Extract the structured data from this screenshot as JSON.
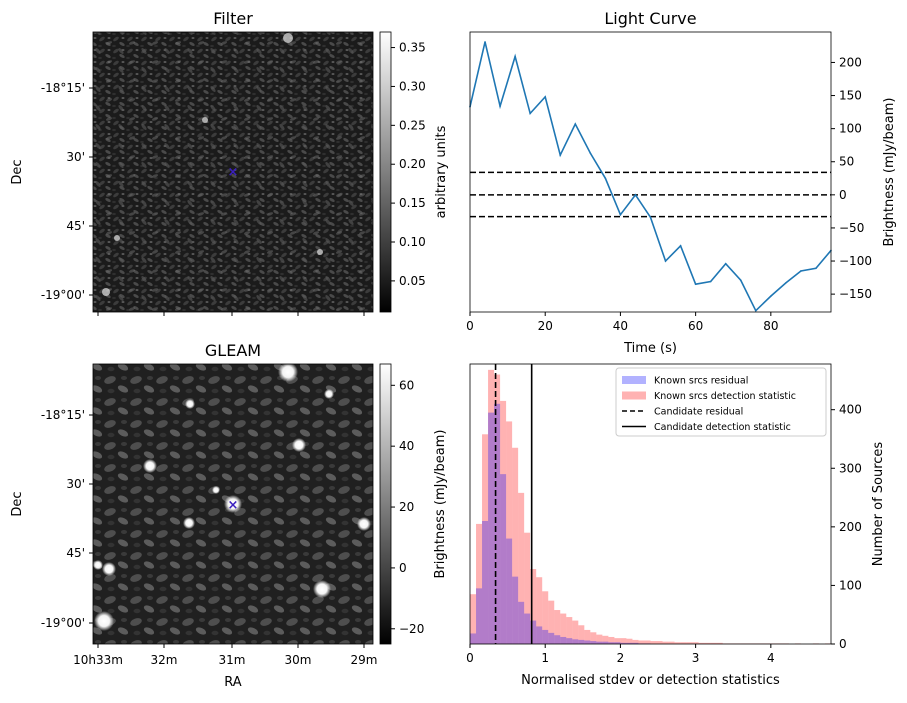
{
  "chart_data": [
    {
      "type": "heatmap",
      "title": "Filter",
      "ylabel": "Dec",
      "y_ticks": [
        "-18°15'",
        "30'",
        "45'",
        "-19°00'"
      ],
      "colorbar": {
        "label": "arbitrary units",
        "range": [
          0.01,
          0.37
        ],
        "ticks": [
          {
            "value": 0.35,
            "label": "0.35"
          },
          {
            "value": 0.3,
            "label": "0.30"
          },
          {
            "value": 0.25,
            "label": "0.25"
          },
          {
            "value": 0.2,
            "label": "0.20"
          },
          {
            "value": 0.15,
            "label": "0.15"
          },
          {
            "value": 0.1,
            "label": "0.10"
          },
          {
            "value": 0.05,
            "label": "0.05"
          }
        ]
      },
      "marker": "×"
    },
    {
      "type": "line",
      "title": "Light Curve",
      "xlabel": "Time (s)",
      "ylabel": "Brightness (mJy/beam)",
      "xlim": [
        0,
        96
      ],
      "ylim": [
        -177,
        246
      ],
      "x_ticks": [
        0,
        20,
        40,
        60,
        80
      ],
      "y_ticks": [
        200,
        150,
        100,
        50,
        0,
        -50,
        -100,
        -150
      ],
      "series": [
        {
          "color": "#1f77b4",
          "x": [
            0,
            4,
            8,
            12,
            16,
            20,
            24,
            28,
            32,
            36,
            40,
            44,
            48,
            52,
            56,
            60,
            64,
            68,
            72,
            76,
            80,
            84,
            88,
            92,
            96
          ],
          "values": [
            133,
            231,
            134,
            209,
            123,
            148,
            60,
            107,
            63,
            25,
            -30,
            0,
            -34,
            -100,
            -77,
            -135,
            -131,
            -104,
            -129,
            -175,
            -153,
            -133,
            -115,
            -111,
            -84
          ]
        }
      ],
      "hlines": [
        {
          "y": 34,
          "style": "dashed",
          "color": "#000000"
        },
        {
          "y": 0,
          "style": "dashed",
          "color": "#000000"
        },
        {
          "y": -33,
          "style": "dashed",
          "color": "#000000"
        }
      ]
    },
    {
      "type": "heatmap",
      "title": "GLEAM",
      "xlabel": "RA",
      "ylabel": "Dec",
      "x_ticks": [
        "10h33m",
        "32m",
        "31m",
        "30m",
        "29m"
      ],
      "y_ticks": [
        "-18°15'",
        "30'",
        "45'",
        "-19°00'"
      ],
      "colorbar": {
        "label": "Brightness (mJy/beam)",
        "range": [
          -25,
          67
        ],
        "ticks": [
          {
            "value": 60,
            "label": "60"
          },
          {
            "value": 40,
            "label": "40"
          },
          {
            "value": 20,
            "label": "20"
          },
          {
            "value": 0,
            "label": "0"
          },
          {
            "value": -20,
            "label": "−20"
          }
        ]
      },
      "marker": "×"
    },
    {
      "type": "bar",
      "xlabel": "Normalised stdev or detection statistics",
      "ylabel": "Number of Sources",
      "xlim": [
        0,
        4.8
      ],
      "ylim": [
        0,
        478
      ],
      "x_ticks": [
        0,
        1,
        2,
        3,
        4
      ],
      "y_ticks": [
        0,
        100,
        200,
        300,
        400
      ],
      "bin_width": 0.08,
      "series": [
        {
          "name": "Known srcs residual",
          "color": "#0000ff",
          "opacity": 0.3,
          "bin_start": 0.0,
          "values": [
            18,
            95,
            210,
            395,
            410,
            290,
            180,
            115,
            72,
            52,
            40,
            30,
            24,
            19,
            15,
            12,
            10,
            8,
            7,
            6,
            5,
            4,
            4,
            3,
            3,
            2,
            2,
            2,
            1,
            1
          ]
        },
        {
          "name": "Known srcs detection statistic",
          "color": "#ff0000",
          "opacity": 0.3,
          "bin_start": 0.0,
          "values": [
            85,
            205,
            358,
            468,
            460,
            415,
            380,
            335,
            258,
            190,
            128,
            114,
            90,
            74,
            58,
            52,
            46,
            40,
            32,
            24,
            20,
            16,
            14,
            12,
            10,
            10,
            9,
            7,
            6,
            6,
            5,
            5,
            4,
            4,
            3,
            3,
            3,
            3,
            2,
            2,
            2,
            2,
            1,
            1,
            1,
            1,
            1,
            1,
            1,
            1,
            1,
            1,
            1,
            0,
            1,
            0,
            0,
            1,
            0,
            1
          ]
        }
      ],
      "vlines": [
        {
          "name": "Candidate residual",
          "x": 0.34,
          "style": "dashed",
          "color": "#000000"
        },
        {
          "name": "Candidate detection statistic",
          "x": 0.82,
          "style": "solid",
          "color": "#000000"
        }
      ],
      "legend_position": "top-right"
    }
  ]
}
